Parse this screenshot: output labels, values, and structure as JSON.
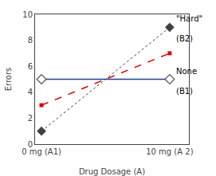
{
  "chart_data": {
    "type": "line",
    "x": [
      0,
      10
    ],
    "xlabel": "Drug Dosage (A)",
    "ylabel": "Errors",
    "xlim": [
      -0.5,
      11.5
    ],
    "xticks": [
      {
        "value": 0,
        "label": "0 mg (A1)"
      },
      {
        "value": 10,
        "label": "10 mg (A 2)"
      }
    ],
    "ylim": [
      0,
      10
    ],
    "yticks": [
      0,
      2,
      4,
      6,
      8,
      10
    ],
    "grid": false,
    "series": [
      {
        "color": "#DD0000",
        "values": [
          3.0,
          7.0
        ],
        "marker": "square",
        "line_style": "dashed"
      },
      {
        "color": "#404040",
        "values": [
          1,
          9
        ],
        "marker": "diamond",
        "line_style": "dotted"
      },
      {
        "color": "#1F3E9C",
        "values": [
          5,
          5
        ],
        "marker": "diamond-open",
        "line_style": "solid"
      }
    ],
    "annotations": [
      {
        "lines": [
          {
            "text": "\"Hard\"",
            "x": 10.15,
            "y": 9.2
          },
          {
            "text": "(B2)",
            "x": 10.15,
            "y": 8.6
          }
        ]
      },
      {
        "lines": [
          {
            "text": "None",
            "x": 10.15,
            "y": 5.15
          },
          {
            "text": "(B1)",
            "x": 10.15,
            "y": 4.55
          }
        ]
      }
    ]
  }
}
